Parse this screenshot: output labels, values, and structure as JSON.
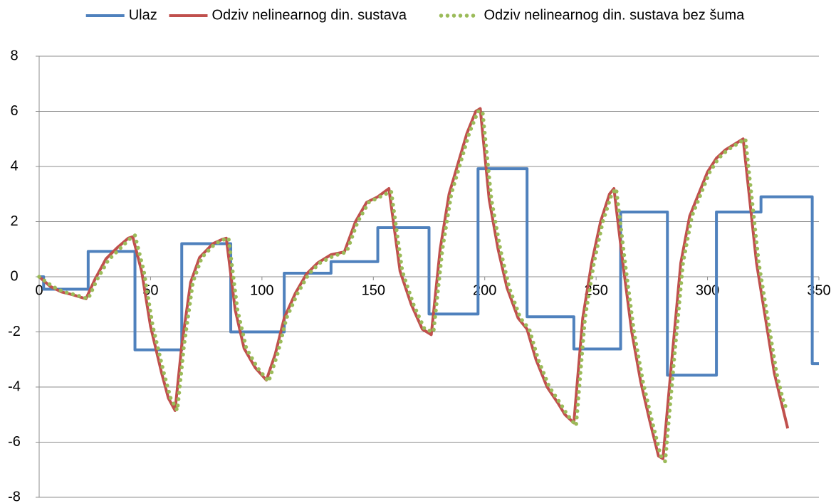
{
  "chart_data": {
    "type": "line",
    "xlim": [
      0,
      350
    ],
    "xticks": [
      0,
      50,
      100,
      150,
      200,
      250,
      300,
      350
    ],
    "ylim": [
      -8,
      8
    ],
    "yticks": [
      -8,
      -6,
      -4,
      -2,
      0,
      2,
      4,
      6,
      8
    ],
    "grid": true,
    "legend": "top",
    "series": [
      {
        "name": "Ulaz",
        "color": "#4f81bd",
        "style": "solid",
        "x": [
          0,
          2,
          2,
          22,
          22,
          43,
          43,
          64,
          64,
          86,
          86,
          110,
          110,
          131,
          131,
          152,
          152,
          175,
          175,
          197,
          197,
          219,
          219,
          240,
          240,
          261,
          261,
          282,
          282,
          304,
          304,
          324,
          324,
          347,
          347,
          350
        ],
        "values": [
          0,
          0,
          -0.45,
          -0.45,
          0.92,
          0.92,
          -2.65,
          -2.65,
          1.2,
          1.2,
          -2.0,
          -2.0,
          0.13,
          0.13,
          0.55,
          0.55,
          1.78,
          1.78,
          -1.35,
          -1.35,
          3.92,
          3.92,
          -1.45,
          -1.45,
          -2.62,
          -2.62,
          2.35,
          2.35,
          -3.57,
          -3.57,
          2.35,
          2.35,
          2.9,
          2.9,
          -3.15,
          -3.15
        ]
      },
      {
        "name": "Odziv nelinearnog din. sustava",
        "color": "#c0504d",
        "style": "solid",
        "x": [
          0,
          5,
          10,
          15,
          21,
          25,
          30,
          35,
          40,
          42,
          46,
          50,
          55,
          58,
          61,
          64,
          68,
          72,
          78,
          82,
          84,
          88,
          92,
          97,
          102,
          106,
          110,
          115,
          120,
          125,
          131,
          137,
          142,
          147,
          152,
          157,
          162,
          167,
          172,
          176,
          180,
          184,
          188,
          192,
          196,
          198,
          202,
          206,
          210,
          215,
          219,
          223,
          228,
          233,
          236,
          240,
          244,
          248,
          252,
          256,
          258,
          262,
          266,
          270,
          274,
          278,
          280,
          284,
          288,
          292,
          296,
          300,
          304,
          308,
          312,
          316,
          318,
          322,
          326,
          330,
          333,
          336
        ],
        "values": [
          0,
          -0.35,
          -0.55,
          -0.65,
          -0.8,
          -0.1,
          0.65,
          1.05,
          1.4,
          1.45,
          0.2,
          -1.8,
          -3.5,
          -4.4,
          -4.85,
          -2.5,
          -0.2,
          0.7,
          1.2,
          1.35,
          1.4,
          -1.2,
          -2.6,
          -3.3,
          -3.75,
          -2.8,
          -1.5,
          -0.6,
          0.1,
          0.5,
          0.8,
          0.9,
          2.0,
          2.7,
          2.9,
          3.2,
          0.2,
          -1.0,
          -1.9,
          -2.1,
          1.0,
          3.0,
          4.1,
          5.2,
          6.0,
          6.1,
          2.8,
          1.0,
          -0.4,
          -1.5,
          -1.9,
          -3.0,
          -4.0,
          -4.6,
          -5.0,
          -5.3,
          -1.5,
          0.5,
          2.0,
          3.0,
          3.2,
          0.5,
          -2.0,
          -3.8,
          -5.2,
          -6.5,
          -6.6,
          -3.0,
          0.5,
          2.2,
          3.0,
          3.8,
          4.3,
          4.6,
          4.8,
          5.0,
          3.5,
          0.5,
          -1.5,
          -3.5,
          -4.5,
          -5.5
        ]
      },
      {
        "name": "Odziv nelinearnog din. sustava bez šuma",
        "color": "#9bbb59",
        "style": "dotted",
        "x": [
          0,
          6,
          11,
          16,
          22,
          26,
          31,
          36,
          41,
          43,
          47,
          51,
          56,
          59,
          62,
          65,
          69,
          73,
          79,
          83,
          85,
          89,
          93,
          98,
          103,
          107,
          111,
          116,
          121,
          126,
          132,
          138,
          143,
          148,
          153,
          158,
          163,
          168,
          173,
          177,
          181,
          185,
          189,
          193,
          197,
          199,
          203,
          207,
          211,
          216,
          220,
          224,
          229,
          234,
          237,
          241,
          245,
          249,
          253,
          257,
          259,
          263,
          267,
          271,
          275,
          279,
          281,
          285,
          289,
          293,
          297,
          301,
          305,
          309,
          313,
          317,
          319,
          323,
          327,
          331,
          334,
          336
        ],
        "values": [
          0,
          -0.35,
          -0.55,
          -0.65,
          -0.8,
          -0.1,
          0.6,
          1.0,
          1.4,
          1.5,
          0.2,
          -1.8,
          -3.5,
          -4.4,
          -4.85,
          -2.5,
          -0.2,
          0.7,
          1.2,
          1.35,
          1.4,
          -1.2,
          -2.6,
          -3.3,
          -3.8,
          -2.8,
          -1.5,
          -0.6,
          0.1,
          0.5,
          0.75,
          0.9,
          2.0,
          2.7,
          2.9,
          3.1,
          0.2,
          -1.0,
          -1.9,
          -2.0,
          1.0,
          3.0,
          4.1,
          5.2,
          6.0,
          6.0,
          2.8,
          1.0,
          -0.4,
          -1.5,
          -1.9,
          -3.0,
          -4.0,
          -4.6,
          -5.0,
          -5.4,
          -1.5,
          0.5,
          2.0,
          3.0,
          3.2,
          0.5,
          -2.0,
          -3.8,
          -5.2,
          -6.5,
          -6.7,
          -3.0,
          0.5,
          2.2,
          3.0,
          3.8,
          4.3,
          4.6,
          4.8,
          5.0,
          3.5,
          0.5,
          -1.5,
          -3.5,
          -4.5,
          -4.9
        ]
      }
    ]
  }
}
